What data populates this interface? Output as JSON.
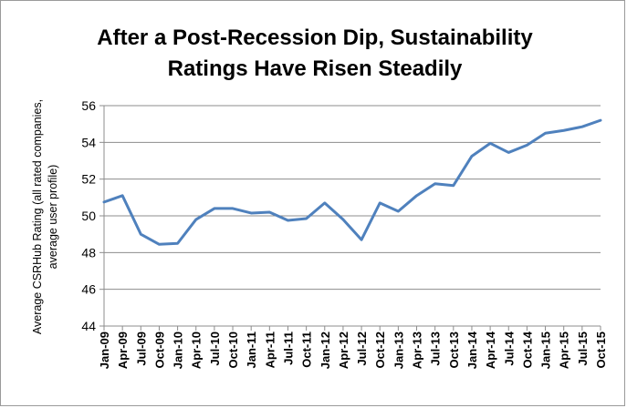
{
  "chart_data": {
    "type": "line",
    "title": [
      "After a Post-Recession Dip, Sustainability",
      "Ratings Have Risen Steadily"
    ],
    "ylabel": [
      "Average CSRHub Rating (all rated companies,",
      "average user profile)"
    ],
    "xlabel": "",
    "ylim": [
      44,
      56
    ],
    "yticks": [
      44,
      46,
      48,
      50,
      52,
      54,
      56
    ],
    "grid": true,
    "legend": "none",
    "line_color": "#4f81bd",
    "categories": [
      "Jan-09",
      "Apr-09",
      "Jul-09",
      "Oct-09",
      "Jan-10",
      "Apr-10",
      "Jul-10",
      "Oct-10",
      "Jan-11",
      "Apr-11",
      "Jul-11",
      "Oct-11",
      "Jan-12",
      "Apr-12",
      "Jul-12",
      "Oct-12",
      "Jan-13",
      "Apr-13",
      "Jul-13",
      "Oct-13",
      "Jan-14",
      "Apr-14",
      "Jul-14",
      "Oct-14",
      "Jan-15",
      "Apr-15",
      "Jul-15",
      "Oct-15"
    ],
    "values": [
      50.75,
      51.1,
      49.0,
      48.45,
      48.5,
      49.8,
      50.4,
      50.4,
      50.15,
      50.2,
      49.75,
      49.85,
      50.7,
      49.8,
      48.7,
      50.7,
      50.25,
      51.1,
      51.75,
      51.65,
      53.25,
      53.95,
      53.45,
      53.85,
      54.5,
      54.65,
      54.85,
      55.2
    ]
  }
}
